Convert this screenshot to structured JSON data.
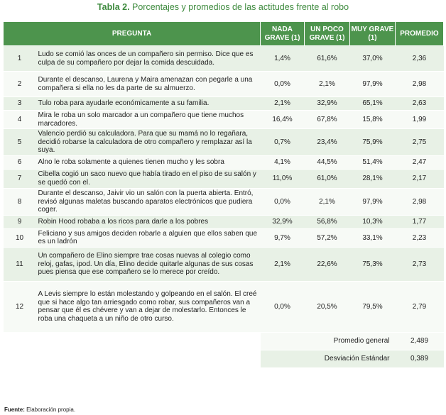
{
  "title": {
    "label": "Tabla 2.",
    "text": " Porcentajes y promedios de las actitudes frente al robo"
  },
  "headers": {
    "pregunta": "PREGUNTA",
    "nada": "NADA GRAVE (1)",
    "poco": "UN POCO GRAVE (1)",
    "muy": "MUY GRAVE (1)",
    "promedio": "PROMEDIO"
  },
  "rows": [
    {
      "n": "1",
      "q": "Ludo se comió las onces de un compañero sin permiso. Dice que es culpa de su compañero por dejar la comida descuidada.",
      "nada": "1,4%",
      "poco": "61,6%",
      "muy": "37,0%",
      "prom": "2,36"
    },
    {
      "n": "2",
      "q": "Durante el descanso, Laurena y Maira amenazan con pegarle a una compañera si ella no les da parte de su almuerzo.",
      "nada": "0,0%",
      "poco": "2,1%",
      "muy": "97,9%",
      "prom": "2,98"
    },
    {
      "n": "3",
      "q": "Tulo roba para ayudarle económicamente a su familia.",
      "nada": "2,1%",
      "poco": "32,9%",
      "muy": "65,1%",
      "prom": "2,63"
    },
    {
      "n": "4",
      "q": "Mira le roba un solo marcador a un compañero que tiene muchos marcadores.",
      "nada": "16,4%",
      "poco": "67,8%",
      "muy": "15,8%",
      "prom": "1,99"
    },
    {
      "n": "5",
      "q": "Valencio perdió su calculadora. Para que su mamá no lo regañara, decidió robarse la calculadora de otro compañero y remplazar así la suya.",
      "nada": "0,7%",
      "poco": "23,4%",
      "muy": "75,9%",
      "prom": "2,75"
    },
    {
      "n": "6",
      "q": "Alno le roba solamente a quienes tienen mucho y les sobra",
      "nada": "4,1%",
      "poco": "44,5%",
      "muy": "51,4%",
      "prom": "2,47"
    },
    {
      "n": "7",
      "q": "Cibella cogió un saco nuevo que había tirado en el piso de su salón y se quedó con el.",
      "nada": "11,0%",
      "poco": "61,0%",
      "muy": "28,1%",
      "prom": "2,17"
    },
    {
      "n": "8",
      "q": "Durante el descanso, Jaivir vio un salón con la puerta abierta. Entró, revisó algunas maletas buscando aparatos electrónicos que pudiera coger.",
      "nada": "0,0%",
      "poco": "2,1%",
      "muy": "97,9%",
      "prom": "2,98"
    },
    {
      "n": "9",
      "q": "Robin Hood robaba a los ricos para darle a los pobres",
      "nada": "32,9%",
      "poco": "56,8%",
      "muy": "10,3%",
      "prom": "1,77"
    },
    {
      "n": "10",
      "q": "Feliciano y sus amigos deciden robarle a alguien que ellos saben que es un ladrón",
      "nada": "9,7%",
      "poco": "57,2%",
      "muy": "33,1%",
      "prom": "2,23"
    },
    {
      "n": "11",
      "q": "Un compañero de Elino siempre trae cosas nuevas al colegio como reloj, gafas, ipod. Un día, Elino decide quitarle algunas de sus cosas pues piensa que ese compañero se lo merece por creído.",
      "nada": "2,1%",
      "poco": "22,6%",
      "muy": "75,3%",
      "prom": "2,73"
    },
    {
      "n": "12",
      "q": "A Levis siempre lo están molestando y golpeando en el salón. El creé que si hace algo tan arriesgado como robar, sus compañeros van a pensar que él es chévere y van a dejar de molestarlo. Entonces le roba una chaqueta a un niño de otro curso.",
      "nada": "0,0%",
      "poco": "20,5%",
      "muy": "79,5%",
      "prom": "2,79"
    }
  ],
  "summary": {
    "general_label": "Promedio general",
    "general_value": "2,489",
    "desv_label": "Desviación Estándar",
    "desv_value": "0,389"
  },
  "source": {
    "label": "Fuente:",
    "text": " Elaboración propia."
  },
  "colors": {
    "header_bg": "#4d944d",
    "title": "#3d8a3d",
    "row_odd": "#e8f1e6",
    "row_even": "#f7faf6"
  }
}
